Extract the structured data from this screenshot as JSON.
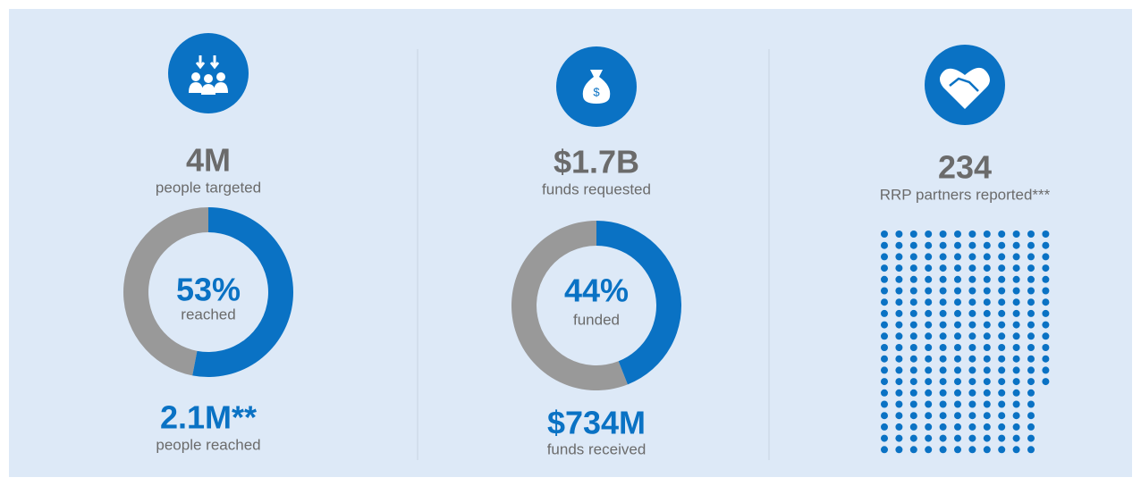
{
  "panels": [
    {
      "value": "4M",
      "label": "people targeted",
      "percent": 53,
      "percent_label": "53%",
      "percent_caption": "reached",
      "result": "2.1M**",
      "result_label": "people reached"
    },
    {
      "value": "$1.7B",
      "label": "funds requested",
      "percent": 44,
      "percent_label": "44%",
      "percent_caption": "funded",
      "result": "$734M",
      "result_label": "funds received"
    }
  ],
  "partners": {
    "count": 234,
    "label": "RRP partners reported***"
  }
}
